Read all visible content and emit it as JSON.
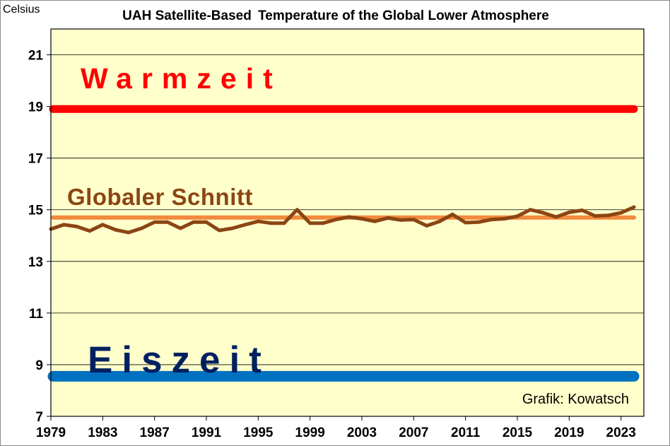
{
  "chart_data": {
    "type": "line",
    "title_part1": "UAH Satellite-Based",
    "title_part2": "Temperature of the Global Lower Atmosphere",
    "ylabel": "Celsius",
    "ylim": [
      7,
      22
    ],
    "yticks": [
      7,
      9,
      11,
      13,
      15,
      17,
      19,
      21
    ],
    "xlim": [
      1979,
      2024
    ],
    "xticks": [
      1979,
      1983,
      1987,
      1991,
      1995,
      1999,
      2003,
      2007,
      2011,
      2015,
      2019,
      2023
    ],
    "grid": true,
    "series": [
      {
        "color": "#8b4513",
        "x": [
          1979,
          1980,
          1981,
          1982,
          1983,
          1984,
          1985,
          1986,
          1987,
          1988,
          1989,
          1990,
          1991,
          1992,
          1993,
          1994,
          1995,
          1996,
          1997,
          1998,
          1999,
          2000,
          2001,
          2002,
          2003,
          2004,
          2005,
          2006,
          2007,
          2008,
          2009,
          2010,
          2011,
          2012,
          2013,
          2014,
          2015,
          2016,
          2017,
          2018,
          2019,
          2020,
          2021,
          2022,
          2023,
          2024
        ],
        "values": [
          14.25,
          14.42,
          14.35,
          14.18,
          14.42,
          14.22,
          14.12,
          14.28,
          14.52,
          14.52,
          14.28,
          14.52,
          14.52,
          14.2,
          14.28,
          14.42,
          14.55,
          14.48,
          14.48,
          15.0,
          14.48,
          14.48,
          14.62,
          14.72,
          14.65,
          14.55,
          14.68,
          14.6,
          14.62,
          14.38,
          14.55,
          14.82,
          14.5,
          14.52,
          14.62,
          14.65,
          14.75,
          15.0,
          14.88,
          14.72,
          14.9,
          14.98,
          14.76,
          14.78,
          14.88,
          15.1
        ]
      }
    ],
    "bands": [
      {
        "label": "Warmzeit",
        "value": 18.9,
        "color": "#ff0000"
      },
      {
        "label": "Globaler Schnitt",
        "value": 14.7,
        "color": "#f28a3d",
        "label_color": "#8b4513"
      },
      {
        "label": "Eiszeit",
        "value": 8.55,
        "color": "#0070c0",
        "label_color": "#002060"
      }
    ],
    "credit": "Grafik: Kowatsch",
    "colors": {
      "plot_background": "#ffffcc",
      "title_part1": "#000000",
      "title_part2": "#8b4513"
    }
  }
}
